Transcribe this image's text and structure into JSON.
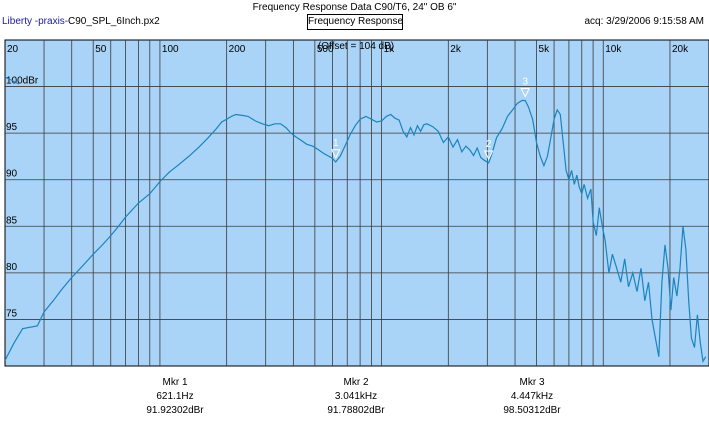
{
  "header": {
    "title": "Frequency Response Data C90/T6, 24\" OB  6\"",
    "app_name": "Liberty -praxis-",
    "file_name": "C90_SPL_6Inch.px2",
    "subtitle": "Frequency Response",
    "acquired": "acq: 3/29/2006 9:15:58 AM"
  },
  "chart_data": {
    "type": "line",
    "title": "Frequency Response Data C90/T6, 24\" OB  6\"",
    "subtitle": "Frequency Response",
    "annotation": "(Offset = 104 dB)",
    "x_scale": "log",
    "xlim": [
      20,
      30000
    ],
    "ylim": [
      70,
      105
    ],
    "grid": true,
    "x_ticks": [
      {
        "value": 20,
        "label": "20"
      },
      {
        "value": 50,
        "label": "50"
      },
      {
        "value": 100,
        "label": "100"
      },
      {
        "value": 200,
        "label": "200"
      },
      {
        "value": 500,
        "label": "500"
      },
      {
        "value": 1000,
        "label": "1k"
      },
      {
        "value": 2000,
        "label": "2k"
      },
      {
        "value": 5000,
        "label": "5k"
      },
      {
        "value": 10000,
        "label": "10k"
      },
      {
        "value": 20000,
        "label": "20k"
      }
    ],
    "y_ticks": [
      {
        "value": 100,
        "label": "100dBr"
      },
      {
        "value": 95,
        "label": "95"
      },
      {
        "value": 90,
        "label": "90"
      },
      {
        "value": 85,
        "label": "85"
      },
      {
        "value": 80,
        "label": "80"
      },
      {
        "value": 75,
        "label": "75"
      }
    ],
    "series": [
      {
        "color": "#1a84c0",
        "points": [
          [
            20,
            70.6
          ],
          [
            22,
            72.5
          ],
          [
            24,
            74
          ],
          [
            28,
            74.3
          ],
          [
            30,
            75.8
          ],
          [
            33,
            77
          ],
          [
            36,
            78.2
          ],
          [
            40,
            79.5
          ],
          [
            45,
            80.8
          ],
          [
            50,
            82
          ],
          [
            55,
            83
          ],
          [
            60,
            84
          ],
          [
            65,
            85
          ],
          [
            70,
            86
          ],
          [
            80,
            87.5
          ],
          [
            90,
            88.5
          ],
          [
            100,
            89.8
          ],
          [
            110,
            90.8
          ],
          [
            120,
            91.5
          ],
          [
            135,
            92.5
          ],
          [
            150,
            93.5
          ],
          [
            165,
            94.5
          ],
          [
            180,
            95.5
          ],
          [
            190,
            96.2
          ],
          [
            200,
            96.5
          ],
          [
            210,
            96.8
          ],
          [
            220,
            97
          ],
          [
            235,
            96.9
          ],
          [
            250,
            96.8
          ],
          [
            270,
            96.3
          ],
          [
            290,
            96
          ],
          [
            310,
            95.8
          ],
          [
            330,
            96
          ],
          [
            350,
            96
          ],
          [
            370,
            95.6
          ],
          [
            390,
            95
          ],
          [
            410,
            94.6
          ],
          [
            430,
            94.3
          ],
          [
            460,
            93.8
          ],
          [
            490,
            93.6
          ],
          [
            520,
            93.2
          ],
          [
            550,
            92.8
          ],
          [
            580,
            92.5
          ],
          [
            600,
            92.3
          ],
          [
            621,
            91.9
          ],
          [
            650,
            92.5
          ],
          [
            680,
            93.5
          ],
          [
            720,
            94.8
          ],
          [
            760,
            95.8
          ],
          [
            800,
            96.5
          ],
          [
            850,
            96.8
          ],
          [
            900,
            96.5
          ],
          [
            950,
            96.2
          ],
          [
            1000,
            96.3
          ],
          [
            1050,
            96.8
          ],
          [
            1100,
            97
          ],
          [
            1150,
            96.6
          ],
          [
            1200,
            96.4
          ],
          [
            1250,
            95.2
          ],
          [
            1300,
            94.6
          ],
          [
            1350,
            95.6
          ],
          [
            1400,
            94.8
          ],
          [
            1450,
            95.8
          ],
          [
            1500,
            95.2
          ],
          [
            1550,
            95.9
          ],
          [
            1600,
            96
          ],
          [
            1700,
            95.7
          ],
          [
            1800,
            95.2
          ],
          [
            1900,
            94
          ],
          [
            2000,
            94.6
          ],
          [
            2100,
            93.5
          ],
          [
            2200,
            94.3
          ],
          [
            2300,
            93
          ],
          [
            2400,
            93.6
          ],
          [
            2500,
            93.2
          ],
          [
            2600,
            92.6
          ],
          [
            2700,
            93.4
          ],
          [
            2800,
            92.4
          ],
          [
            2900,
            92.1
          ],
          [
            3041,
            91.8
          ],
          [
            3150,
            92.8
          ],
          [
            3300,
            94.5
          ],
          [
            3500,
            95.5
          ],
          [
            3700,
            96.8
          ],
          [
            3900,
            97.5
          ],
          [
            4100,
            98.2
          ],
          [
            4300,
            98.5
          ],
          [
            4447,
            98.5
          ],
          [
            4600,
            97.8
          ],
          [
            4800,
            96.5
          ],
          [
            5000,
            94
          ],
          [
            5200,
            92.5
          ],
          [
            5400,
            91.5
          ],
          [
            5600,
            92.5
          ],
          [
            5800,
            94.5
          ],
          [
            6000,
            96.5
          ],
          [
            6200,
            97.5
          ],
          [
            6400,
            97
          ],
          [
            6600,
            94
          ],
          [
            6800,
            91
          ],
          [
            7000,
            90
          ],
          [
            7200,
            91
          ],
          [
            7400,
            89.5
          ],
          [
            7600,
            90.5
          ],
          [
            7800,
            89.2
          ],
          [
            8000,
            88.5
          ],
          [
            8200,
            89.5
          ],
          [
            8500,
            88
          ],
          [
            8800,
            89
          ],
          [
            9000,
            85.5
          ],
          [
            9300,
            84
          ],
          [
            9600,
            87
          ],
          [
            9900,
            85
          ],
          [
            10200,
            83.5
          ],
          [
            10600,
            80
          ],
          [
            11000,
            82
          ],
          [
            11500,
            80.5
          ],
          [
            12000,
            79
          ],
          [
            12500,
            81.5
          ],
          [
            13000,
            78.5
          ],
          [
            13600,
            80
          ],
          [
            14200,
            78
          ],
          [
            14800,
            80.5
          ],
          [
            15400,
            77
          ],
          [
            16000,
            79
          ],
          [
            16600,
            75
          ],
          [
            17200,
            73
          ],
          [
            17800,
            71
          ],
          [
            18400,
            79
          ],
          [
            19000,
            83
          ],
          [
            19600,
            80.5
          ],
          [
            20200,
            76
          ],
          [
            20800,
            79.5
          ],
          [
            21500,
            77.5
          ],
          [
            22200,
            80.5
          ],
          [
            22900,
            85
          ],
          [
            23600,
            82.5
          ],
          [
            24300,
            77
          ],
          [
            25000,
            73
          ],
          [
            25800,
            72
          ],
          [
            26600,
            75.5
          ],
          [
            27400,
            72.5
          ],
          [
            28200,
            70.5
          ],
          [
            29000,
            71
          ]
        ]
      }
    ],
    "markers": [
      {
        "label": "1",
        "name": "Mkr 1",
        "x": 621.1,
        "y": 91.92302,
        "freq_text": "621.1Hz",
        "level_text": "91.92302dBr"
      },
      {
        "label": "2",
        "name": "Mkr 2",
        "x": 3041,
        "y": 91.78802,
        "freq_text": "3.041kHz",
        "level_text": "91.78802dBr"
      },
      {
        "label": "3",
        "name": "Mkr 3",
        "x": 4447,
        "y": 98.50312,
        "freq_text": "4.447kHz",
        "level_text": "98.50312dBr"
      }
    ]
  }
}
